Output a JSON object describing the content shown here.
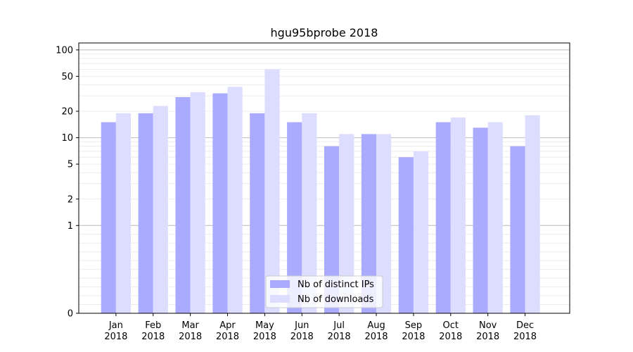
{
  "chart_data": {
    "type": "bar",
    "title": "hgu95bprobe 2018",
    "xlabel": "",
    "ylabel": "",
    "y_scale": "symlog",
    "ylim": [
      0,
      120
    ],
    "grid": true,
    "legend_position": "bottom-center",
    "categories": [
      [
        "Jan",
        "2018"
      ],
      [
        "Feb",
        "2018"
      ],
      [
        "Mar",
        "2018"
      ],
      [
        "Apr",
        "2018"
      ],
      [
        "May",
        "2018"
      ],
      [
        "Jun",
        "2018"
      ],
      [
        "Jul",
        "2018"
      ],
      [
        "Aug",
        "2018"
      ],
      [
        "Sep",
        "2018"
      ],
      [
        "Oct",
        "2018"
      ],
      [
        "Nov",
        "2018"
      ],
      [
        "Dec",
        "2018"
      ]
    ],
    "y_ticks": [
      {
        "value": 0,
        "label": "0"
      },
      {
        "value": 1,
        "label": "1"
      },
      {
        "value": 2,
        "label": "2"
      },
      {
        "value": 5,
        "label": "5"
      },
      {
        "value": 10,
        "label": "10"
      },
      {
        "value": 20,
        "label": "20"
      },
      {
        "value": 50,
        "label": "50"
      },
      {
        "value": 100,
        "label": "100"
      }
    ],
    "series": [
      {
        "name": "Nb of distinct IPs",
        "color": "#aaaaff",
        "values": [
          15,
          19,
          29,
          32,
          19,
          15,
          8,
          11,
          6,
          15,
          13,
          8
        ]
      },
      {
        "name": "Nb of downloads",
        "color": "#ddddff",
        "values": [
          19,
          23,
          33,
          38,
          60,
          19,
          11,
          11,
          7,
          17,
          15,
          18
        ]
      }
    ]
  }
}
